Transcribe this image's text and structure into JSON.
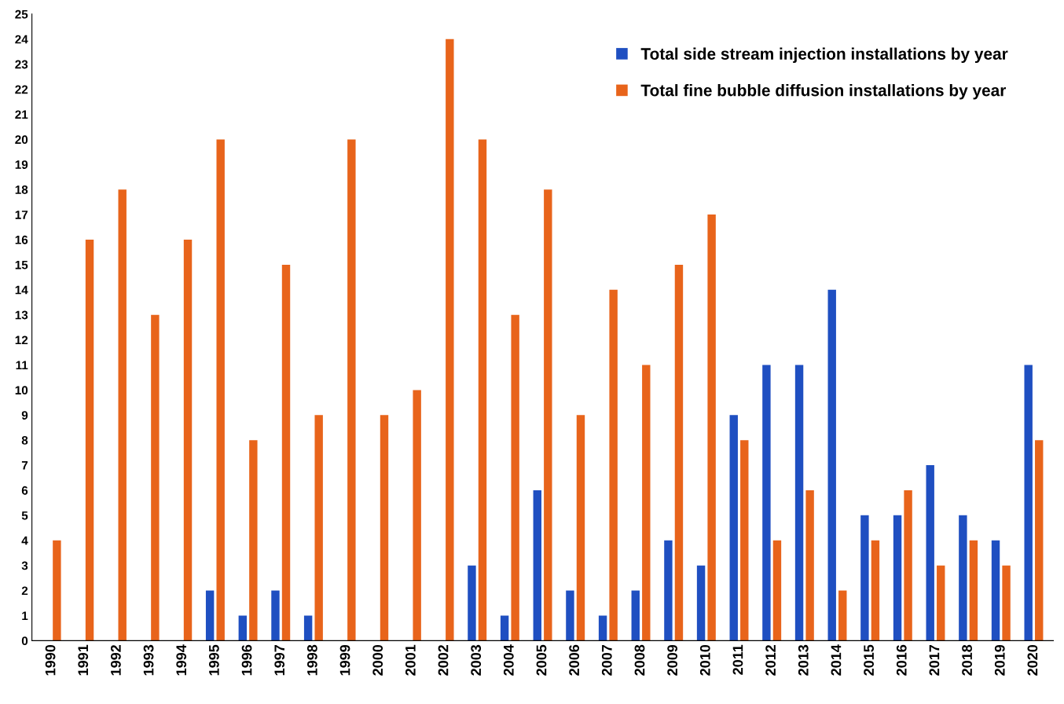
{
  "chart_data": {
    "type": "bar",
    "categories": [
      "1990",
      "1991",
      "1992",
      "1993",
      "1994",
      "1995",
      "1996",
      "1997",
      "1998",
      "1999",
      "2000",
      "2001",
      "2002",
      "2003",
      "2004",
      "2005",
      "2006",
      "2007",
      "2008",
      "2009",
      "2010",
      "2011",
      "2012",
      "2013",
      "2014",
      "2015",
      "2016",
      "2017",
      "2018",
      "2019",
      "2020"
    ],
    "series": [
      {
        "name": "Total side stream injection installations by year",
        "color": "#1f4fc1",
        "values": [
          0,
          0,
          0,
          0,
          0,
          2,
          1,
          2,
          1,
          0,
          0,
          0,
          0,
          3,
          1,
          6,
          2,
          1,
          2,
          4,
          3,
          9,
          11,
          11,
          14,
          5,
          5,
          7,
          5,
          4,
          11
        ]
      },
      {
        "name": "Total fine bubble diffusion installations by year",
        "color": "#e8641b",
        "values": [
          4,
          16,
          18,
          13,
          16,
          20,
          8,
          15,
          9,
          20,
          9,
          10,
          24,
          20,
          13,
          18,
          9,
          14,
          11,
          15,
          17,
          8,
          4,
          6,
          2,
          4,
          6,
          3,
          4,
          3,
          8
        ]
      }
    ],
    "ylim": [
      0,
      25
    ],
    "yticks": [
      0,
      1,
      2,
      3,
      4,
      5,
      6,
      7,
      8,
      9,
      10,
      11,
      12,
      13,
      14,
      15,
      16,
      17,
      18,
      19,
      20,
      21,
      22,
      23,
      24,
      25
    ],
    "grid": false,
    "legend": "top right"
  }
}
